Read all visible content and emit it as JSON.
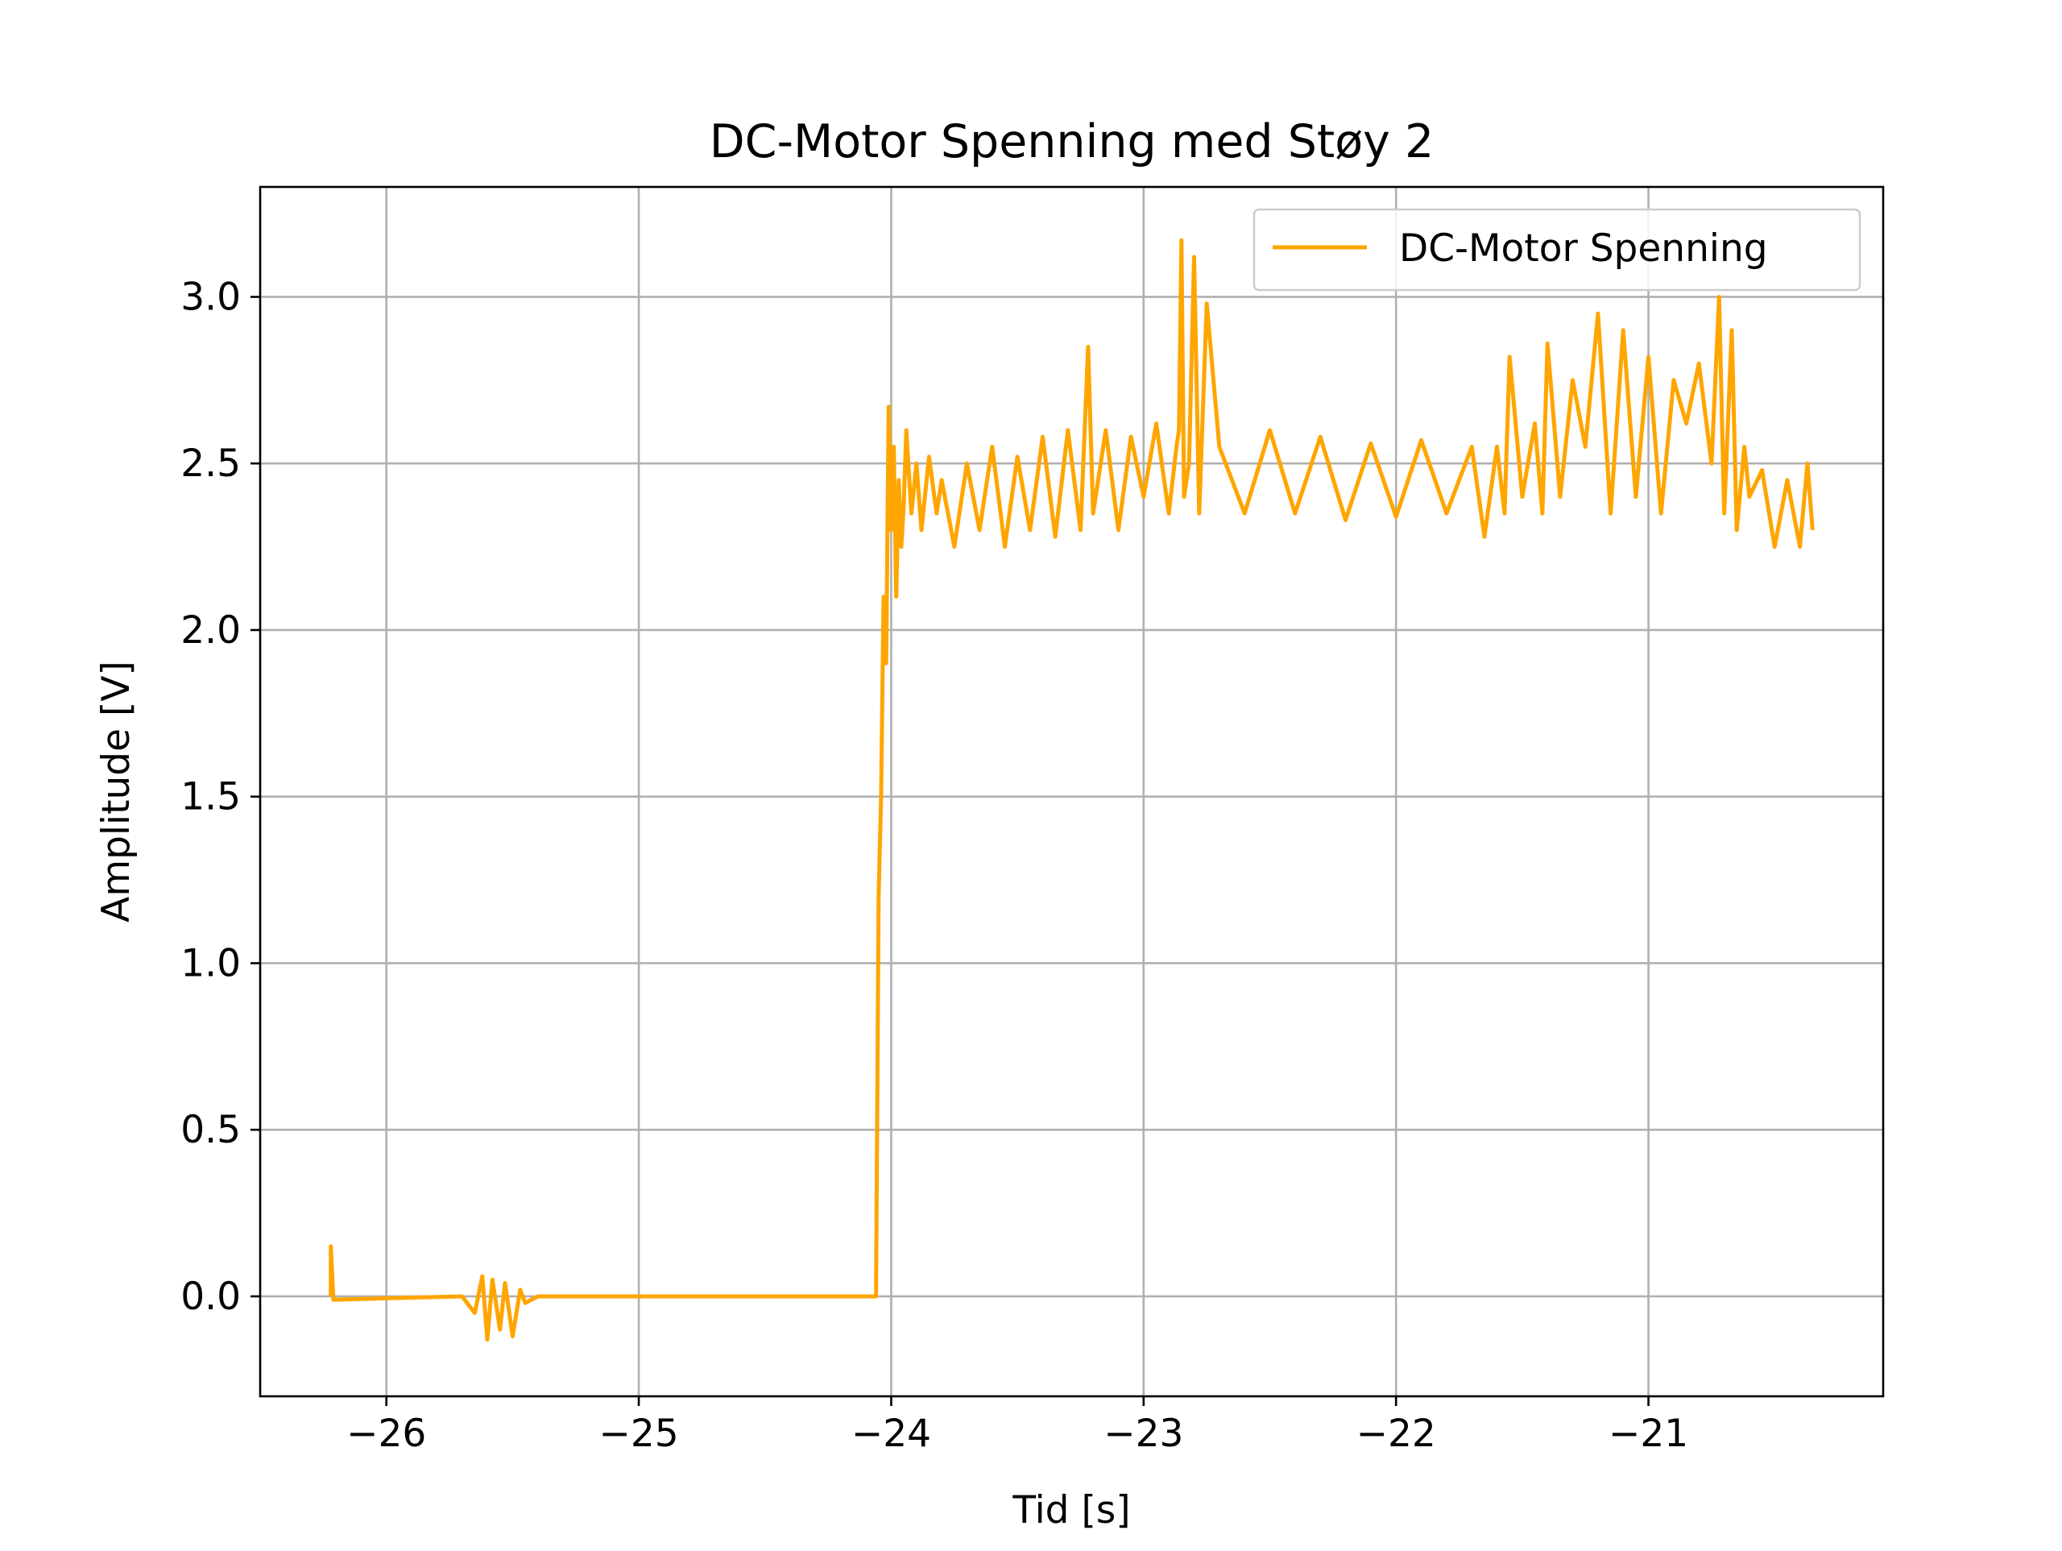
{
  "chart_data": {
    "type": "line",
    "title": "DC-Motor Spenning med Støy 2",
    "xlabel": "Tid [s]",
    "ylabel": "Amplitude [V]",
    "xlim": [
      -26.5,
      -20.07
    ],
    "ylim": [
      -0.3,
      3.33
    ],
    "xticks": [
      -26,
      -25,
      -24,
      -23,
      -22,
      -21
    ],
    "xtick_labels": [
      "−26",
      "−25",
      "−24",
      "−23",
      "−22",
      "−21"
    ],
    "yticks": [
      0.0,
      0.5,
      1.0,
      1.5,
      2.0,
      2.5,
      3.0
    ],
    "ytick_labels": [
      "0.0",
      "0.5",
      "1.0",
      "1.5",
      "2.0",
      "2.5",
      "3.0"
    ],
    "grid": true,
    "legend_position": "top-right",
    "series": [
      {
        "name": "DC-Motor Spenning",
        "color": "#ffa500",
        "x": [
          -26.22,
          -26.22,
          -26.21,
          -25.7,
          -25.65,
          -25.62,
          -25.6,
          -25.58,
          -25.55,
          -25.53,
          -25.5,
          -25.47,
          -25.45,
          -25.4,
          -24.6,
          -24.06,
          -24.05,
          -24.04,
          -24.03,
          -24.02,
          -24.01,
          -24.0,
          -23.99,
          -23.98,
          -23.97,
          -23.96,
          -23.95,
          -23.94,
          -23.92,
          -23.9,
          -23.88,
          -23.85,
          -23.82,
          -23.8,
          -23.75,
          -23.7,
          -23.65,
          -23.6,
          -23.55,
          -23.5,
          -23.45,
          -23.4,
          -23.35,
          -23.3,
          -23.25,
          -23.22,
          -23.2,
          -23.15,
          -23.1,
          -23.05,
          -23.0,
          -22.95,
          -22.9,
          -22.87,
          -22.86,
          -22.85,
          -22.84,
          -22.82,
          -22.8,
          -22.78,
          -22.75,
          -22.7,
          -22.6,
          -22.5,
          -22.4,
          -22.3,
          -22.2,
          -22.1,
          -22.0,
          -21.9,
          -21.8,
          -21.7,
          -21.65,
          -21.6,
          -21.57,
          -21.55,
          -21.5,
          -21.45,
          -21.42,
          -21.4,
          -21.35,
          -21.3,
          -21.25,
          -21.2,
          -21.15,
          -21.1,
          -21.05,
          -21.0,
          -20.95,
          -20.9,
          -20.85,
          -20.8,
          -20.75,
          -20.72,
          -20.7,
          -20.67,
          -20.65,
          -20.62,
          -20.6,
          -20.55,
          -20.5,
          -20.45,
          -20.4,
          -20.37,
          -20.35
        ],
        "y": [
          0.0,
          0.15,
          -0.01,
          0.0,
          -0.05,
          0.06,
          -0.13,
          0.05,
          -0.1,
          0.04,
          -0.12,
          0.02,
          -0.02,
          0.0,
          0.0,
          0.0,
          1.2,
          1.5,
          2.1,
          1.9,
          2.67,
          2.3,
          2.55,
          2.1,
          2.45,
          2.25,
          2.38,
          2.6,
          2.35,
          2.5,
          2.3,
          2.52,
          2.35,
          2.45,
          2.25,
          2.5,
          2.3,
          2.55,
          2.25,
          2.52,
          2.3,
          2.58,
          2.28,
          2.6,
          2.3,
          2.85,
          2.35,
          2.6,
          2.3,
          2.58,
          2.4,
          2.62,
          2.35,
          2.55,
          2.6,
          3.17,
          2.4,
          2.5,
          3.12,
          2.35,
          2.98,
          2.55,
          2.35,
          2.6,
          2.35,
          2.58,
          2.33,
          2.56,
          2.34,
          2.57,
          2.35,
          2.55,
          2.28,
          2.55,
          2.35,
          2.82,
          2.4,
          2.62,
          2.35,
          2.86,
          2.4,
          2.75,
          2.55,
          2.95,
          2.35,
          2.9,
          2.4,
          2.82,
          2.35,
          2.75,
          2.62,
          2.8,
          2.5,
          3.0,
          2.35,
          2.9,
          2.3,
          2.55,
          2.4,
          2.48,
          2.25,
          2.45,
          2.25,
          2.5,
          2.3
        ]
      }
    ]
  }
}
